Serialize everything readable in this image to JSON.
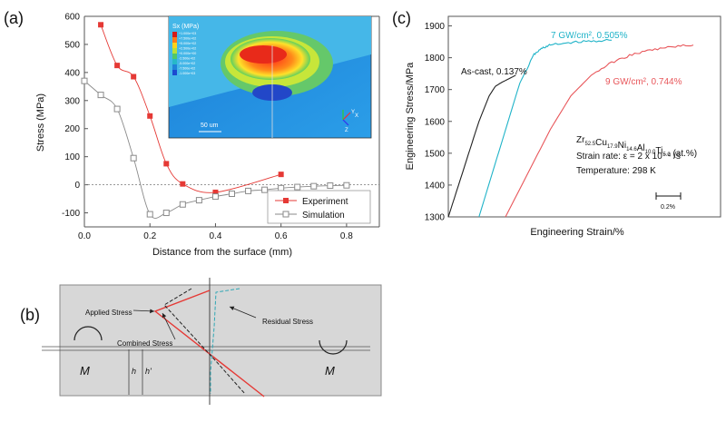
{
  "panel_labels": {
    "a": "(a)",
    "b": "(b)",
    "c": "(c)"
  },
  "colors": {
    "experiment": "#e53935",
    "simulation": "#8a8a8a",
    "ascast": "#222222",
    "gw7": "#1fb3c8",
    "gw9": "#e8565a",
    "grey_box": "#d7d7d7"
  },
  "chart_data": [
    {
      "id": "a",
      "type": "line",
      "xlabel": "Distance from the surface (mm)",
      "ylabel": "Stress (MPa)",
      "xlim": [
        0.0,
        0.9
      ],
      "ylim": [
        -150,
        600
      ],
      "xticks": [
        "0.0",
        "0.2",
        "0.4",
        "0.6",
        "0.8"
      ],
      "yticks": [
        "-100",
        "0",
        "100",
        "200",
        "300",
        "400",
        "500",
        "600"
      ],
      "series": [
        {
          "name": "Experiment",
          "marker": "filled-square",
          "color": "#e53935",
          "x": [
            0.05,
            0.1,
            0.15,
            0.2,
            0.25,
            0.3,
            0.4,
            0.6
          ],
          "y": [
            570,
            425,
            385,
            245,
            75,
            3,
            -27,
            37
          ]
        },
        {
          "name": "Simulation",
          "marker": "open-square",
          "color": "#8a8a8a",
          "x": [
            0.0,
            0.05,
            0.1,
            0.15,
            0.2,
            0.25,
            0.3,
            0.35,
            0.4,
            0.45,
            0.5,
            0.55,
            0.6,
            0.65,
            0.7,
            0.75,
            0.8
          ],
          "y": [
            370,
            320,
            270,
            95,
            -105,
            -100,
            -70,
            -55,
            -42,
            -32,
            -22,
            -18,
            -12,
            -8,
            -5,
            -3,
            -2
          ]
        }
      ],
      "inset": {
        "legend_title": "Sx (MPa)",
        "scale_label": "50 um",
        "axis_labels": [
          "Y",
          "X",
          "Z"
        ],
        "contour_levels": [
          "+1.000e+03",
          "+7.500e+02",
          "+5.000e+02",
          "+2.500e+02",
          "+0.000e+00",
          "-2.500e+02",
          "-5.000e+02",
          "-7.500e+02",
          "-1.000e+03"
        ]
      }
    },
    {
      "id": "c",
      "type": "line",
      "xlabel": "Engineering Strain/%",
      "ylabel": "Engineering Stress/MPa",
      "ylim": [
        1300,
        1930
      ],
      "yticks": [
        "1300",
        "1400",
        "1500",
        "1600",
        "1700",
        "1800",
        "1900"
      ],
      "scale_bar": "0.2%",
      "series": [
        {
          "name": "As-cast, 0.137%",
          "color": "#222222",
          "strain": [
            0.0,
            0.08,
            0.15,
            0.2,
            0.23,
            0.26,
            0.3,
            0.33
          ],
          "stress": [
            1300,
            1460,
            1600,
            1680,
            1710,
            1722,
            1735,
            1745
          ]
        },
        {
          "name": "7 GW/cm², 0.505%",
          "color": "#1fb3c8",
          "strain": [
            0.15,
            0.25,
            0.35,
            0.42,
            0.46,
            0.5,
            0.6,
            0.7,
            0.8
          ],
          "stress": [
            1300,
            1510,
            1720,
            1810,
            1830,
            1840,
            1848,
            1852,
            1855
          ]
        },
        {
          "name": "9 GW/cm², 0.744%",
          "color": "#e8565a",
          "strain": [
            0.28,
            0.4,
            0.5,
            0.6,
            0.7,
            0.8,
            0.9,
            1.0,
            1.1,
            1.2
          ],
          "stress": [
            1300,
            1450,
            1575,
            1680,
            1745,
            1785,
            1810,
            1825,
            1835,
            1840
          ]
        }
      ],
      "annotation": {
        "alloy_prefix": "Zr",
        "alloy_parts": [
          {
            "base": "Zr",
            "sub": "52.5"
          },
          {
            "base": "Cu",
            "sub": "17.9"
          },
          {
            "base": "Ni",
            "sub": "14.6"
          },
          {
            "base": "Al",
            "sub": "10.0"
          },
          {
            "base": "Ti",
            "sub": "5.0"
          }
        ],
        "alloy_suffix": " (at.%)",
        "strain_rate": "Strain rate:  ε = 2 x 10⁻⁴ /s",
        "temperature": "Temperature: 298 K"
      }
    }
  ],
  "panel_b": {
    "labels": {
      "applied": "Applied Stress",
      "residual": "Residual Stress",
      "combined": "Combined Stress",
      "moment_left": "M",
      "moment_right": "M",
      "h": "h",
      "h_prime": "h'"
    }
  }
}
